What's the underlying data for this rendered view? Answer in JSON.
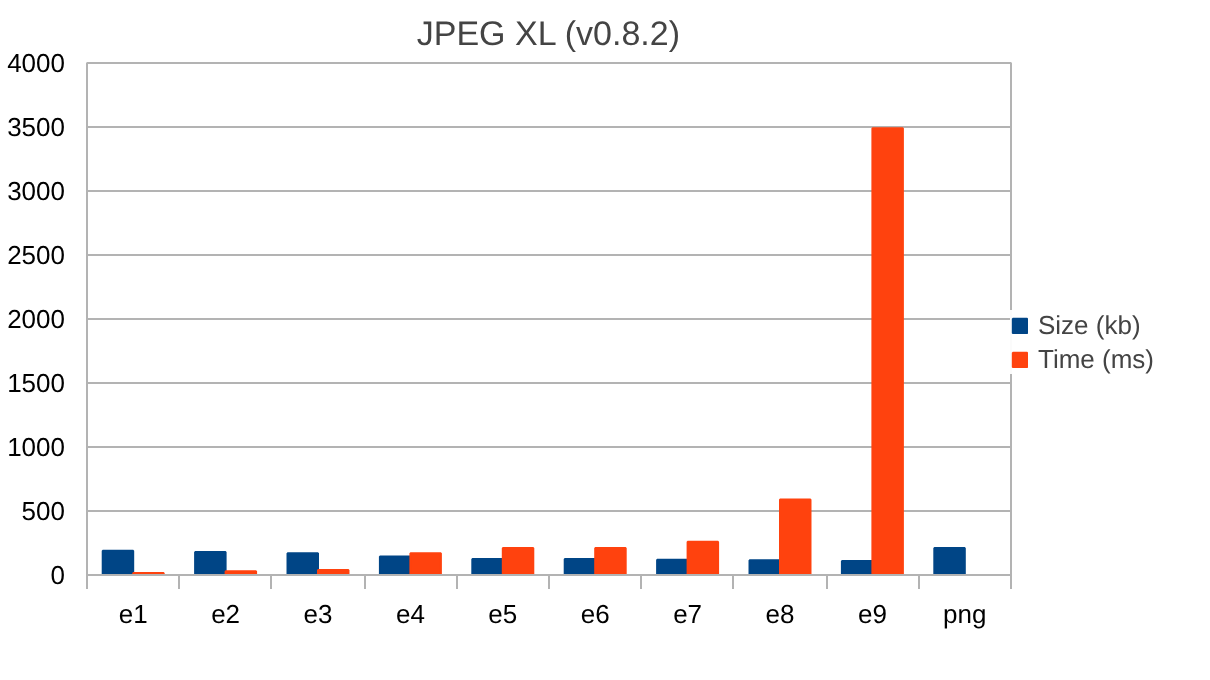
{
  "chart_data": {
    "type": "bar",
    "title": "JPEG XL (v0.8.2)",
    "categories": [
      "e1",
      "e2",
      "e3",
      "e4",
      "e5",
      "e6",
      "e7",
      "e8",
      "e9",
      "png"
    ],
    "series": [
      {
        "name": "Size (kb)",
        "color": "#004586",
        "values": [
          190,
          180,
          170,
          145,
          125,
          125,
          120,
          115,
          110,
          210
        ]
      },
      {
        "name": "Time (ms)",
        "color": "#ff420e",
        "values": [
          15,
          30,
          40,
          170,
          210,
          210,
          260,
          590,
          3490,
          null
        ]
      }
    ],
    "ylim": [
      0,
      4000
    ],
    "yticks": [
      0,
      500,
      1000,
      1500,
      2000,
      2500,
      3000,
      3500,
      4000
    ],
    "grid": "y",
    "legend": "right"
  }
}
